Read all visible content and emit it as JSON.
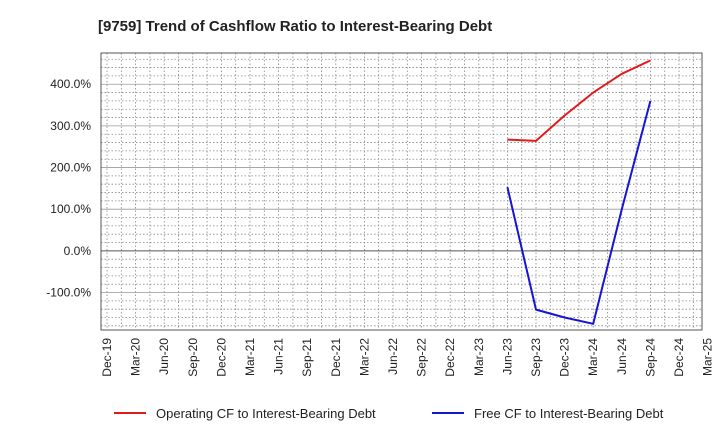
{
  "chart_data": {
    "type": "line",
    "title": "[9759]  Trend of Cashflow Ratio to Interest-Bearing Debt",
    "xlabel": "",
    "ylabel": "",
    "x": [
      "Dec-19",
      "Mar-20",
      "Jun-20",
      "Sep-20",
      "Dec-20",
      "Mar-21",
      "Jun-21",
      "Sep-21",
      "Dec-21",
      "Mar-22",
      "Jun-22",
      "Sep-22",
      "Dec-22",
      "Mar-23",
      "Jun-23",
      "Sep-23",
      "Dec-23",
      "Mar-24",
      "Jun-24",
      "Sep-24",
      "Dec-24",
      "Mar-25"
    ],
    "ylim": [
      -190,
      475
    ],
    "yticks": [
      -100,
      0,
      100,
      200,
      300,
      400
    ],
    "ytick_labels": [
      "-100.0%",
      "0.0%",
      "100.0%",
      "200.0%",
      "300.0%",
      "400.0%"
    ],
    "grid": true,
    "legend_position": "bottom",
    "series": [
      {
        "name": "Operating CF to Interest-Bearing Debt",
        "color": "#e31a1c",
        "values": [
          null,
          null,
          null,
          null,
          null,
          null,
          null,
          null,
          null,
          null,
          null,
          null,
          null,
          null,
          267,
          264,
          325,
          380,
          425,
          457,
          null,
          null
        ]
      },
      {
        "name": "Free CF to Interest-Bearing Debt",
        "color": "#1515d6",
        "values": [
          null,
          null,
          null,
          null,
          null,
          null,
          null,
          null,
          null,
          null,
          null,
          null,
          null,
          null,
          153,
          -141,
          -160,
          -175,
          100,
          360,
          null,
          null
        ]
      }
    ]
  }
}
